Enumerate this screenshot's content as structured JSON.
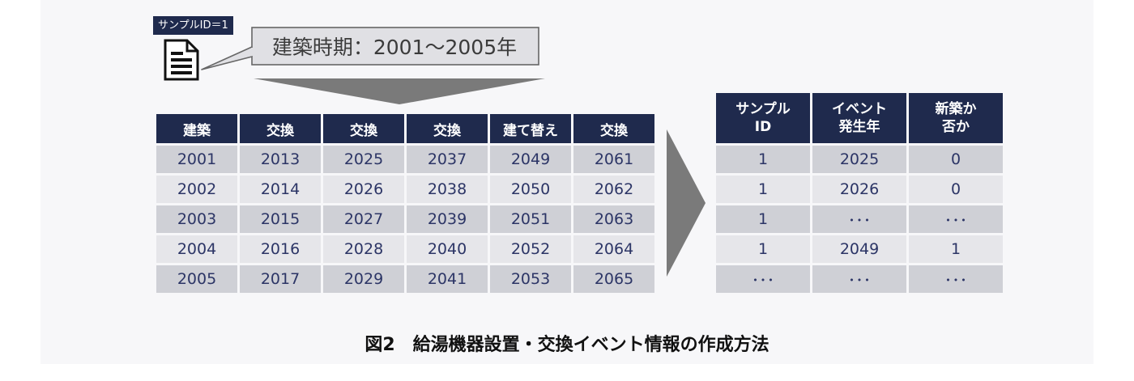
{
  "sample_tag": "サンプルID＝1",
  "callout": "建築時期：2001〜2005年",
  "left_table": {
    "headers": [
      "建築",
      "交換",
      "交換",
      "交換",
      "建て替え",
      "交換"
    ],
    "rows": [
      [
        "2001",
        "2013",
        "2025",
        "2037",
        "2049",
        "2061"
      ],
      [
        "2002",
        "2014",
        "2026",
        "2038",
        "2050",
        "2062"
      ],
      [
        "2003",
        "2015",
        "2027",
        "2039",
        "2051",
        "2063"
      ],
      [
        "2004",
        "2016",
        "2028",
        "2040",
        "2052",
        "2064"
      ],
      [
        "2005",
        "2017",
        "2029",
        "2041",
        "2053",
        "2065"
      ]
    ]
  },
  "right_table": {
    "headers": [
      {
        "line1": "サンプル",
        "line2": "ID"
      },
      {
        "line1": "イベント",
        "line2": "発生年"
      },
      {
        "line1": "新築か",
        "line2": "否か"
      }
    ],
    "rows": [
      [
        "1",
        "2025",
        "0"
      ],
      [
        "1",
        "2026",
        "0"
      ],
      [
        "1",
        "･･･",
        "･･･"
      ],
      [
        "1",
        "2049",
        "1"
      ],
      [
        "･･･",
        "･･･",
        "･･･"
      ]
    ]
  },
  "caption": "図2　給湯機器設置・交換イベント情報の作成方法",
  "colors": {
    "header_bg": "#1f2a4d",
    "row_dark": "#cfd0d6",
    "row_light": "#e6e6ea",
    "cell_text": "#2c3566",
    "arrow": "#7a7a7a"
  },
  "icons": [
    "document-icon",
    "funnel-arrow-icon",
    "right-arrow-icon"
  ]
}
